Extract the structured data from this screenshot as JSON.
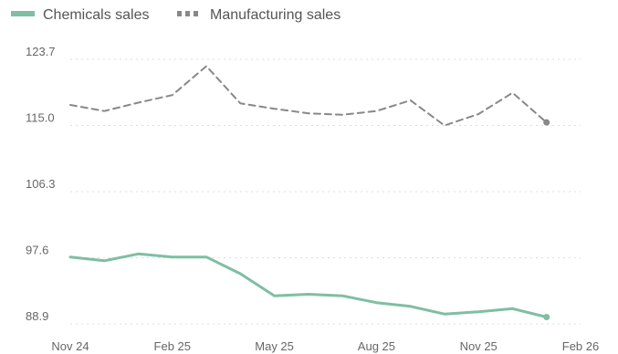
{
  "chart_data": {
    "type": "line",
    "x": [
      "2024-11",
      "2024-12",
      "2025-01",
      "2025-02",
      "2025-03",
      "2025-04",
      "2025-05",
      "2025-06",
      "2025-07",
      "2025-08",
      "2025-09",
      "2025-10",
      "2025-11",
      "2025-12",
      "2026-01"
    ],
    "series": [
      {
        "name": "Chemicals sales",
        "color": "#7fbea3",
        "line_style": "solid",
        "values": [
          97.7,
          97.2,
          98.1,
          97.7,
          97.7,
          95.5,
          92.6,
          92.8,
          92.6,
          91.7,
          91.2,
          90.2,
          90.5,
          90.9,
          89.8
        ]
      },
      {
        "name": "Manufacturing sales",
        "color": "#888888",
        "line_style": "dashed",
        "values": [
          117.7,
          116.9,
          118.0,
          119.0,
          122.8,
          117.9,
          117.2,
          116.6,
          116.4,
          116.9,
          118.3,
          115.0,
          116.5,
          119.3,
          115.4
        ]
      }
    ],
    "x_ticks": [
      {
        "date": "2024-11",
        "label": "Nov 24"
      },
      {
        "date": "2025-02",
        "label": "Feb 25"
      },
      {
        "date": "2025-05",
        "label": "May 25"
      },
      {
        "date": "2025-08",
        "label": "Aug 25"
      },
      {
        "date": "2025-11",
        "label": "Nov 25"
      },
      {
        "date": "2026-02",
        "label": "Feb 26"
      }
    ],
    "y_ticks": [
      {
        "value": 88.9,
        "label": "88.9"
      },
      {
        "value": 97.6,
        "label": "97.6"
      },
      {
        "value": 106.3,
        "label": "106.3"
      },
      {
        "value": 115.0,
        "label": "115.0"
      },
      {
        "value": 123.7,
        "label": "123.7"
      }
    ],
    "ylim": [
      88.9,
      123.7
    ],
    "xlim": [
      "2024-11",
      "2026-02"
    ],
    "grid": "horizontal-dotted",
    "legend_position": "top-left",
    "end_markers": true
  }
}
